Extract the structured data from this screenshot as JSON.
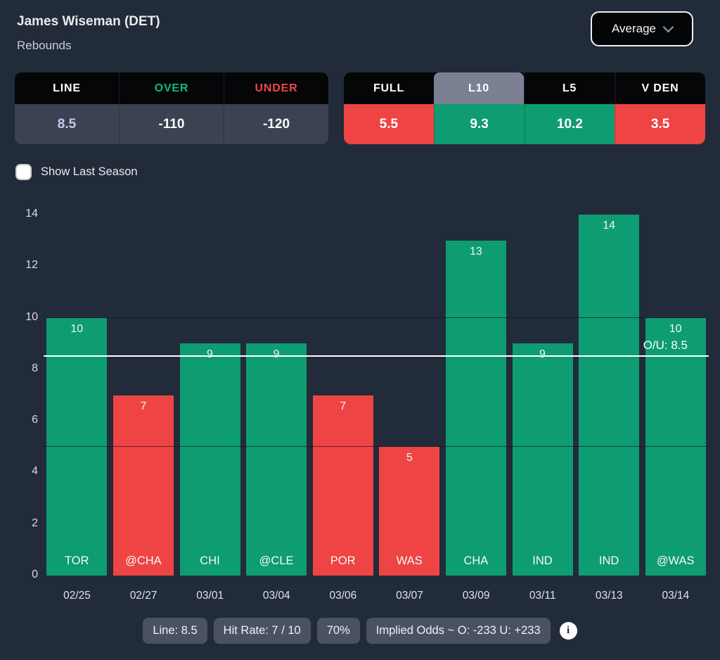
{
  "colors": {
    "background": "#222b39",
    "over_green": "#0e9c72",
    "under_red": "#ef4444",
    "over_text": "#14b87e",
    "under_text": "#f04748",
    "line_value_text": "#c4cbec",
    "selected_tab_gray": "#7b8192",
    "value_row_bg": "#3b4252",
    "chip_bg": "#4a5262",
    "ou_line": "#ffffff"
  },
  "header": {
    "player": "James Wiseman (DET)",
    "stat": "Rebounds",
    "aggregate_select": {
      "value": "Average",
      "icon": "chevron-down-icon"
    }
  },
  "line_table": {
    "columns": [
      {
        "header": "LINE",
        "value": "8.5"
      },
      {
        "header": "OVER",
        "value": "-110"
      },
      {
        "header": "UNDER",
        "value": "-120"
      }
    ]
  },
  "splits_table": {
    "tabs": [
      {
        "label": "FULL",
        "value": "5.5",
        "result": "under",
        "selected": false
      },
      {
        "label": "L10",
        "value": "9.3",
        "result": "over",
        "selected": true
      },
      {
        "label": "L5",
        "value": "10.2",
        "result": "over",
        "selected": false
      },
      {
        "label": "V DEN",
        "value": "3.5",
        "result": "under",
        "selected": false
      }
    ]
  },
  "season_toggle": {
    "label": "Show Last Season",
    "checked": false
  },
  "chart_data": {
    "type": "bar",
    "title": "James Wiseman (DET) Rebounds — last 10 games",
    "x": [
      "02/25",
      "02/27",
      "03/01",
      "03/04",
      "03/06",
      "03/07",
      "03/09",
      "03/11",
      "03/13",
      "03/14"
    ],
    "opponents": [
      "TOR",
      "@CHA",
      "CHI",
      "@CLE",
      "POR",
      "WAS",
      "CHA",
      "IND",
      "IND",
      "@WAS"
    ],
    "values": [
      10,
      7,
      9,
      9,
      7,
      5,
      13,
      9,
      14,
      10
    ],
    "results": [
      "over",
      "under",
      "over",
      "over",
      "under",
      "under",
      "over",
      "over",
      "over",
      "over"
    ],
    "line": 8.5,
    "line_label": "O/U: 8.5",
    "ylim": [
      0,
      14
    ],
    "yticks": [
      14,
      12,
      10,
      8,
      6,
      4,
      2,
      0
    ],
    "gridlines_over_bars": [
      5,
      10
    ],
    "legend": "none"
  },
  "footer": {
    "chips": [
      "Line: 8.5",
      "Hit Rate: 7 / 10",
      "70%",
      "Implied Odds ~ O: -233 U: +233"
    ],
    "info_icon": "info-circle-icon",
    "info_glyph": "i"
  }
}
